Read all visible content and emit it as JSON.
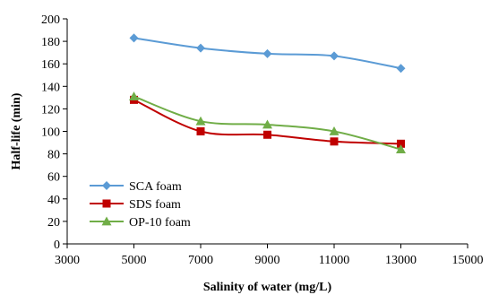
{
  "chart_data": {
    "type": "line",
    "xlabel": "Salinity of water (mg/L)",
    "ylabel": "Half-life (min)",
    "xlim": [
      3000,
      15000
    ],
    "ylim": [
      0,
      200
    ],
    "x_ticks": [
      "3000",
      "5000",
      "7000",
      "9000",
      "11000",
      "13000",
      "15000"
    ],
    "y_ticks": [
      "0",
      "20",
      "40",
      "60",
      "80",
      "100",
      "120",
      "140",
      "160",
      "180",
      "200"
    ],
    "x": [
      5000,
      7000,
      9000,
      11000,
      13000
    ],
    "legend_position": "bottom-left",
    "grid": false,
    "series": [
      {
        "name": "SCA foam",
        "marker": "diamond",
        "color": "#5B9BD5",
        "values": [
          183,
          174,
          169,
          167,
          156
        ]
      },
      {
        "name": "SDS foam",
        "marker": "square",
        "color": "#C00000",
        "values": [
          128,
          100,
          97,
          91,
          89
        ]
      },
      {
        "name": "OP-10 foam",
        "marker": "triangle",
        "color": "#70AD47",
        "values": [
          131,
          109,
          106,
          100,
          84
        ]
      }
    ]
  }
}
